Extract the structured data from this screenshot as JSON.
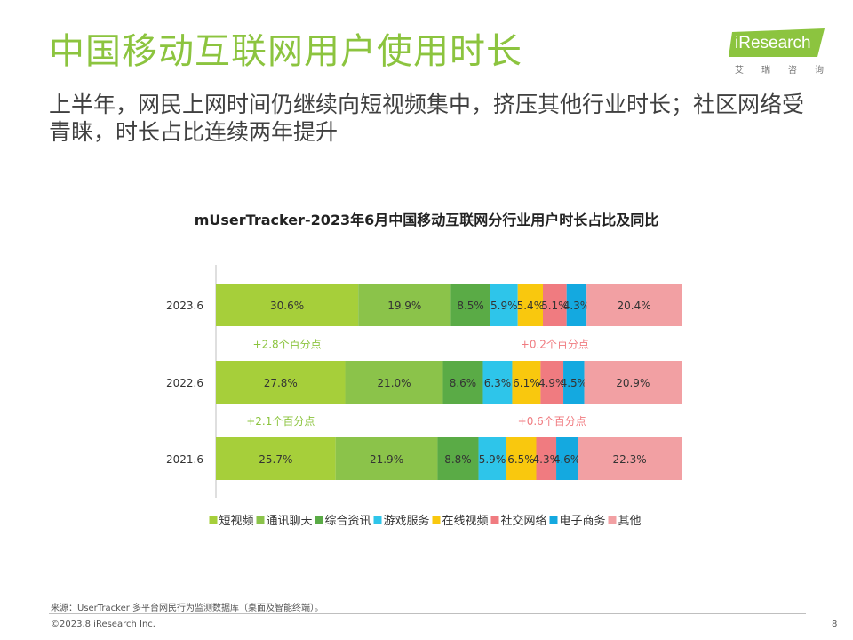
{
  "header": {
    "title": "中国移动互联网用户使用时长",
    "subtitle": "上半年，网民上网时间仍继续向短视频集中，挤压其他行业时长；社区网络受青睐，时长占比连续两年提升"
  },
  "logo": {
    "word": "iResearch",
    "sub": [
      "艾",
      "瑞",
      "咨",
      "询"
    ],
    "color": "#8cc43f"
  },
  "chart_data": {
    "type": "bar",
    "orientation": "horizontal",
    "stacked": true,
    "percent_stacked": true,
    "title": "mUserTracker-2023年6月中国移动互联网分行业用户时长占比及同比",
    "categories": [
      "2023.6",
      "2022.6",
      "2021.6"
    ],
    "series": [
      {
        "name": "短视频",
        "color": "#a6cf3a",
        "values": [
          30.6,
          27.8,
          25.7
        ],
        "labels": [
          "30.6%",
          "27.8%",
          "25.7%"
        ]
      },
      {
        "name": "通讯聊天",
        "color": "#8bc34a",
        "values": [
          19.9,
          21.0,
          21.9
        ],
        "labels": [
          "19.9%",
          "21.0%",
          "21.9%"
        ]
      },
      {
        "name": "综合资讯",
        "color": "#5aab46",
        "values": [
          8.5,
          8.6,
          8.8
        ],
        "labels": [
          "8.5%",
          "8.6%",
          "8.8%"
        ]
      },
      {
        "name": "游戏服务",
        "color": "#2ec5ea",
        "values": [
          5.9,
          6.3,
          5.9
        ],
        "labels": [
          "5.9%",
          "6.3%",
          "5.9%"
        ]
      },
      {
        "name": "在线视频",
        "color": "#f9c80e",
        "values": [
          5.4,
          6.1,
          6.5
        ],
        "labels": [
          "5.4%",
          "6.1%",
          "6.5%"
        ]
      },
      {
        "name": "社交网络",
        "color": "#f07b80",
        "values": [
          5.1,
          4.9,
          4.3
        ],
        "labels": [
          "5.1%",
          "4.9%",
          "4.3%"
        ]
      },
      {
        "name": "电子商务",
        "color": "#14a9e0",
        "values": [
          4.3,
          4.5,
          4.6
        ],
        "labels": [
          "4.3%",
          "4.5%",
          "4.6%"
        ]
      },
      {
        "name": "其他",
        "color": "#f2a0a3",
        "values": [
          20.4,
          20.9,
          22.3
        ],
        "labels": [
          "20.4%",
          "20.9%",
          "22.3%"
        ]
      }
    ],
    "annotations": [
      {
        "text": "+2.8个百分点",
        "series": "短视频",
        "between": [
          "2023.6",
          "2022.6"
        ],
        "color": "#8cc43f"
      },
      {
        "text": "+0.2个百分点",
        "series": "社交网络",
        "between": [
          "2023.6",
          "2022.6"
        ],
        "color": "#f07b80"
      },
      {
        "text": "+2.1个百分点",
        "series": "短视频",
        "between": [
          "2022.6",
          "2021.6"
        ],
        "color": "#8cc43f"
      },
      {
        "text": "+0.6个百分点",
        "series": "社交网络",
        "between": [
          "2022.6",
          "2021.6"
        ],
        "color": "#f07b80"
      }
    ],
    "legend": "bottom"
  },
  "footer": {
    "source": "来源：UserTracker 多平台网民行为监测数据库（桌面及智能终端）。",
    "copyright": "©2023.8 iResearch Inc.",
    "page": "8"
  }
}
